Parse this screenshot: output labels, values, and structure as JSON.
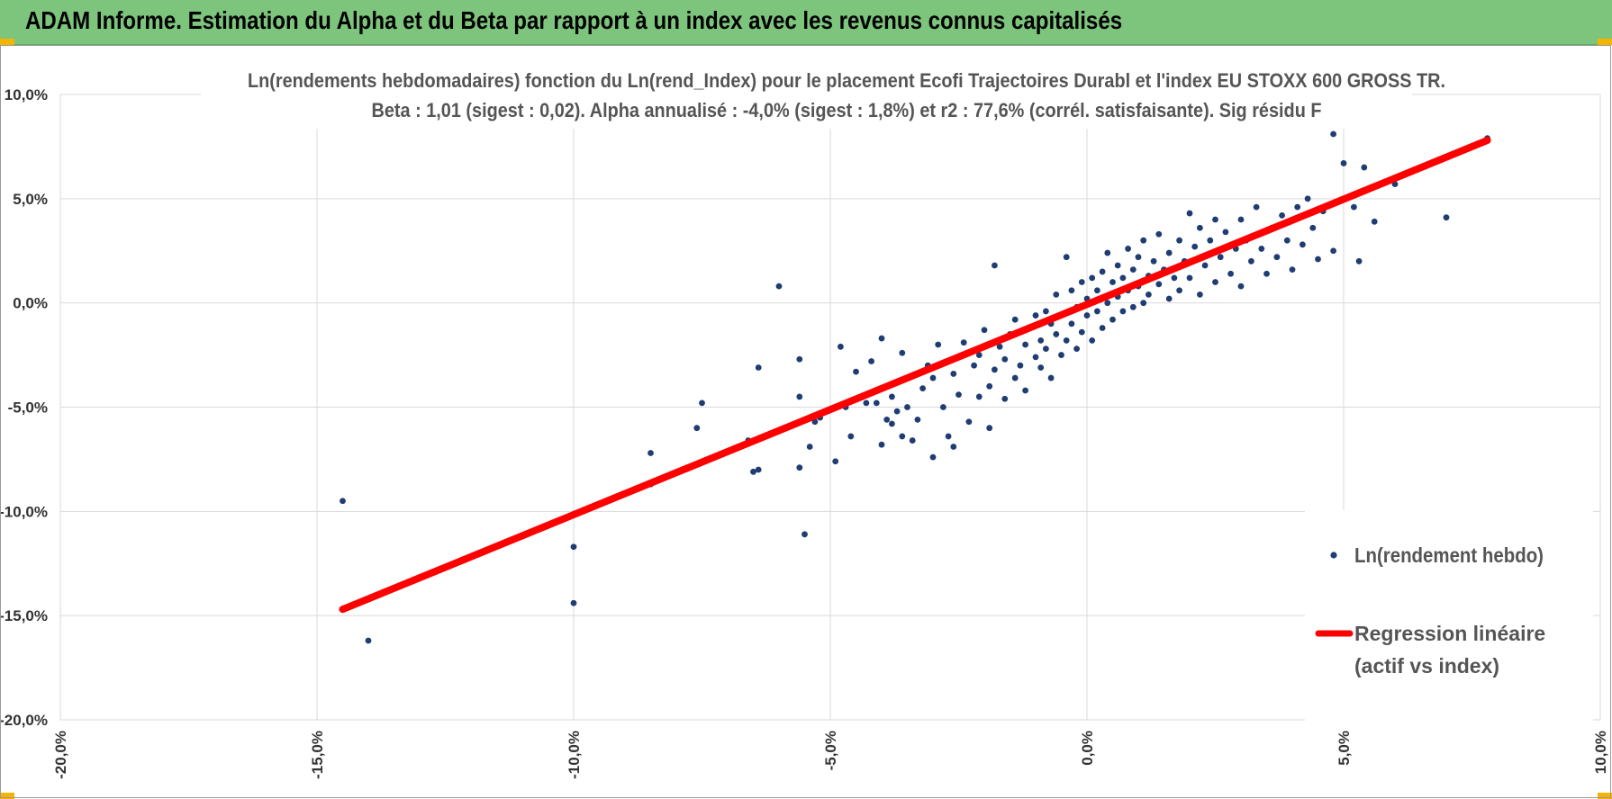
{
  "banner": {
    "title": "ADAM Informe. Estimation du Alpha et du Beta par rapport à un index avec les revenus connus capitalisés",
    "background_color": "#7dc57d"
  },
  "chart_data": {
    "type": "scatter",
    "title_lines": [
      "Ln(rendements hebdomadaires) fonction du Ln(rend_Index) pour le placement Ecofi Trajectoires Durabl et l'index EU STOXX 600 GROSS TR.",
      "Beta : 1,01 (sigest : 0,02).  Alpha annualisé : -4,0% (sigest : 1,8%) et r2 : 77,6% (corrél. satisfaisante). Sig résidu F"
    ],
    "xlim": [
      -0.2,
      0.1
    ],
    "ylim": [
      -0.2,
      0.1
    ],
    "x_ticks": [
      "-20,0%",
      "-15,0%",
      "-10,0%",
      "-5,0%",
      "0,0%",
      "5,0%",
      "10,0%"
    ],
    "y_ticks": [
      "10,0%",
      "5,0%",
      "0,0%",
      "-5,0%",
      "-10,0%",
      "-15,0%",
      "-20,0%"
    ],
    "grid": true,
    "legend_position": "right",
    "series": [
      {
        "name": "Ln(rendement hebdo)",
        "kind": "scatter",
        "color": "#1f3d73",
        "points": [
          [
            -0.145,
            -0.095
          ],
          [
            -0.14,
            -0.162
          ],
          [
            -0.1,
            -0.144
          ],
          [
            -0.1,
            -0.117
          ],
          [
            -0.085,
            -0.072
          ],
          [
            -0.085,
            -0.087
          ],
          [
            -0.076,
            -0.06
          ],
          [
            -0.075,
            -0.048
          ],
          [
            -0.066,
            -0.066
          ],
          [
            -0.065,
            -0.081
          ],
          [
            -0.064,
            -0.08
          ],
          [
            -0.064,
            -0.031
          ],
          [
            -0.06,
            0.008
          ],
          [
            -0.056,
            -0.045
          ],
          [
            -0.056,
            -0.027
          ],
          [
            -0.056,
            -0.079
          ],
          [
            -0.055,
            -0.111
          ],
          [
            -0.054,
            -0.069
          ],
          [
            -0.053,
            -0.057
          ],
          [
            -0.052,
            -0.055
          ],
          [
            -0.049,
            -0.076
          ],
          [
            -0.048,
            -0.021
          ],
          [
            -0.047,
            -0.05
          ],
          [
            -0.046,
            -0.064
          ],
          [
            -0.045,
            -0.033
          ],
          [
            -0.043,
            -0.048
          ],
          [
            -0.042,
            -0.028
          ],
          [
            -0.041,
            -0.048
          ],
          [
            -0.04,
            -0.068
          ],
          [
            -0.04,
            -0.017
          ],
          [
            -0.039,
            -0.056
          ],
          [
            -0.038,
            -0.058
          ],
          [
            -0.038,
            -0.045
          ],
          [
            -0.037,
            -0.052
          ],
          [
            -0.036,
            -0.064
          ],
          [
            -0.036,
            -0.024
          ],
          [
            -0.035,
            -0.05
          ],
          [
            -0.034,
            -0.066
          ],
          [
            -0.033,
            -0.056
          ],
          [
            -0.032,
            -0.041
          ],
          [
            -0.031,
            -0.03
          ],
          [
            -0.03,
            -0.036
          ],
          [
            -0.03,
            -0.074
          ],
          [
            -0.029,
            -0.02
          ],
          [
            -0.028,
            -0.05
          ],
          [
            -0.027,
            -0.064
          ],
          [
            -0.026,
            -0.034
          ],
          [
            -0.026,
            -0.069
          ],
          [
            -0.025,
            -0.044
          ],
          [
            -0.024,
            -0.019
          ],
          [
            -0.023,
            -0.057
          ],
          [
            -0.022,
            -0.03
          ],
          [
            -0.021,
            -0.045
          ],
          [
            -0.021,
            -0.025
          ],
          [
            -0.02,
            -0.013
          ],
          [
            -0.019,
            -0.06
          ],
          [
            -0.019,
            -0.04
          ],
          [
            -0.018,
            -0.032
          ],
          [
            -0.018,
            0.018
          ],
          [
            -0.017,
            -0.021
          ],
          [
            -0.016,
            -0.046
          ],
          [
            -0.016,
            -0.027
          ],
          [
            -0.015,
            -0.015
          ],
          [
            -0.014,
            -0.036
          ],
          [
            -0.014,
            -0.008
          ],
          [
            -0.013,
            -0.03
          ],
          [
            -0.012,
            -0.02
          ],
          [
            -0.012,
            -0.042
          ],
          [
            -0.011,
            -0.012
          ],
          [
            -0.01,
            -0.026
          ],
          [
            -0.01,
            -0.006
          ],
          [
            -0.009,
            -0.031
          ],
          [
            -0.009,
            -0.018
          ],
          [
            -0.008,
            -0.004
          ],
          [
            -0.008,
            -0.022
          ],
          [
            -0.007,
            -0.01
          ],
          [
            -0.007,
            -0.036
          ],
          [
            -0.006,
            -0.015
          ],
          [
            -0.006,
            0.004
          ],
          [
            -0.005,
            -0.025
          ],
          [
            -0.005,
            -0.006
          ],
          [
            -0.004,
            -0.018
          ],
          [
            -0.004,
            0.022
          ],
          [
            -0.003,
            -0.01
          ],
          [
            -0.003,
            0.006
          ],
          [
            -0.002,
            -0.022
          ],
          [
            -0.002,
            -0.002
          ],
          [
            -0.001,
            -0.014
          ],
          [
            -0.001,
            0.01
          ],
          [
            0.0,
            -0.006
          ],
          [
            0.0,
            0.002
          ],
          [
            0.001,
            -0.018
          ],
          [
            0.001,
            0.012
          ],
          [
            0.002,
            -0.004
          ],
          [
            0.002,
            0.006
          ],
          [
            0.003,
            -0.012
          ],
          [
            0.003,
            0.015
          ],
          [
            0.004,
            0.0
          ],
          [
            0.004,
            0.024
          ],
          [
            0.005,
            -0.008
          ],
          [
            0.005,
            0.01
          ],
          [
            0.006,
            0.003
          ],
          [
            0.006,
            0.018
          ],
          [
            0.007,
            -0.004
          ],
          [
            0.007,
            0.012
          ],
          [
            0.008,
            0.006
          ],
          [
            0.008,
            0.026
          ],
          [
            0.009,
            -0.002
          ],
          [
            0.009,
            0.016
          ],
          [
            0.01,
            0.008
          ],
          [
            0.01,
            0.022
          ],
          [
            0.011,
            0.0
          ],
          [
            0.011,
            0.03
          ],
          [
            0.012,
            0.013
          ],
          [
            0.012,
            0.004
          ],
          [
            0.013,
            0.02
          ],
          [
            0.014,
            0.009
          ],
          [
            0.014,
            0.033
          ],
          [
            0.015,
            0.016
          ],
          [
            0.016,
            0.002
          ],
          [
            0.016,
            0.024
          ],
          [
            0.017,
            0.012
          ],
          [
            0.018,
            0.03
          ],
          [
            0.018,
            0.006
          ],
          [
            0.019,
            0.02
          ],
          [
            0.02,
            0.043
          ],
          [
            0.02,
            0.012
          ],
          [
            0.021,
            0.027
          ],
          [
            0.022,
            0.004
          ],
          [
            0.022,
            0.036
          ],
          [
            0.023,
            0.018
          ],
          [
            0.024,
            0.03
          ],
          [
            0.025,
            0.01
          ],
          [
            0.025,
            0.04
          ],
          [
            0.026,
            0.022
          ],
          [
            0.027,
            0.034
          ],
          [
            0.028,
            0.014
          ],
          [
            0.029,
            0.026
          ],
          [
            0.03,
            0.04
          ],
          [
            0.03,
            0.008
          ],
          [
            0.031,
            0.03
          ],
          [
            0.032,
            0.02
          ],
          [
            0.033,
            0.046
          ],
          [
            0.034,
            0.026
          ],
          [
            0.035,
            0.014
          ],
          [
            0.036,
            0.036
          ],
          [
            0.037,
            0.022
          ],
          [
            0.038,
            0.042
          ],
          [
            0.039,
            0.03
          ],
          [
            0.04,
            0.016
          ],
          [
            0.041,
            0.046
          ],
          [
            0.042,
            0.028
          ],
          [
            0.043,
            0.05
          ],
          [
            0.044,
            0.036
          ],
          [
            0.045,
            0.021
          ],
          [
            0.046,
            0.044
          ],
          [
            0.048,
            0.025
          ],
          [
            0.048,
            0.081
          ],
          [
            0.05,
            0.067
          ],
          [
            0.052,
            0.046
          ],
          [
            0.053,
            0.02
          ],
          [
            0.054,
            0.065
          ],
          [
            0.056,
            0.039
          ],
          [
            0.06,
            0.057
          ],
          [
            0.07,
            0.041
          ],
          [
            0.078,
            0.079
          ]
        ]
      },
      {
        "name": "Regression linéaire (actif vs index)",
        "legend_lines": [
          "Regression linéaire",
          "(actif vs index)"
        ],
        "kind": "line",
        "color": "#ff0000",
        "x": [
          -0.145,
          0.078
        ],
        "y": [
          -0.147,
          0.078
        ]
      }
    ]
  }
}
